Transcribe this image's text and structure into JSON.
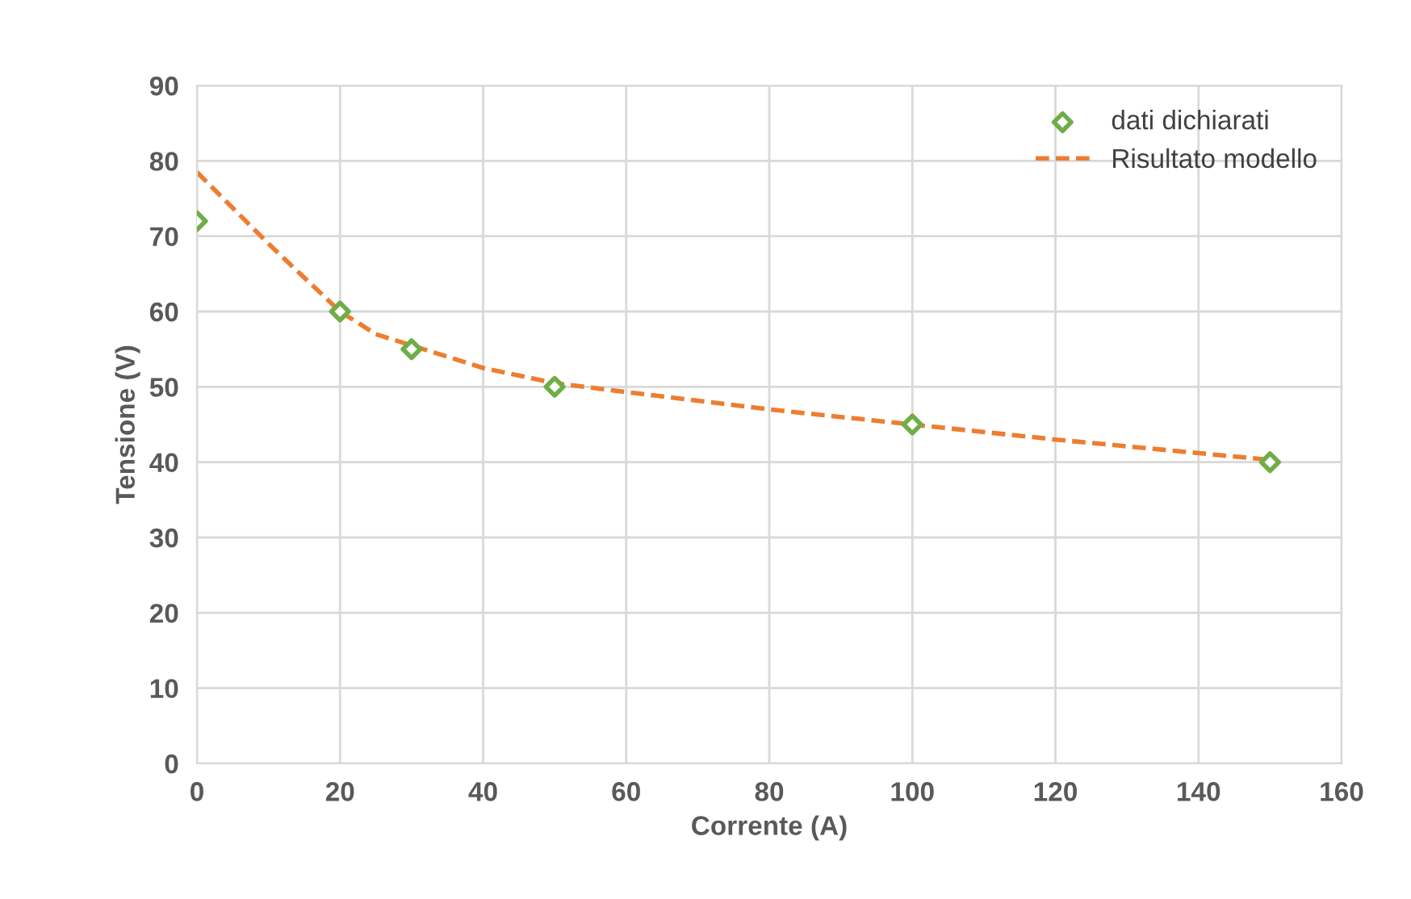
{
  "chart_data": {
    "type": "scatter",
    "xlabel": "Corrente (A)",
    "ylabel": "Tensione (V)",
    "xlim": [
      0,
      160
    ],
    "xticks": [
      0,
      20,
      40,
      60,
      80,
      100,
      120,
      140,
      160
    ],
    "ylim": [
      0,
      90
    ],
    "yticks": [
      0,
      10,
      20,
      30,
      40,
      50,
      60,
      70,
      80,
      90
    ],
    "grid": true,
    "legend": "top right",
    "series": [
      {
        "name": "dati dichiarati",
        "marker": "diamond",
        "color": "#70ad47",
        "x": [
          0,
          20,
          30,
          50,
          100,
          150
        ],
        "values": [
          72,
          60,
          55,
          50,
          45,
          40
        ]
      },
      {
        "name": "Risultato modello",
        "type": "line",
        "line_style": "dashed",
        "marker": "none",
        "color": "#ed7d31",
        "x": [
          0,
          10,
          20,
          25,
          30,
          40,
          50,
          60,
          80,
          100,
          120,
          150
        ],
        "values": [
          78.5,
          69,
          60,
          57,
          55.5,
          52.5,
          50.5,
          49.3,
          47,
          45,
          43,
          40.3
        ]
      }
    ]
  }
}
